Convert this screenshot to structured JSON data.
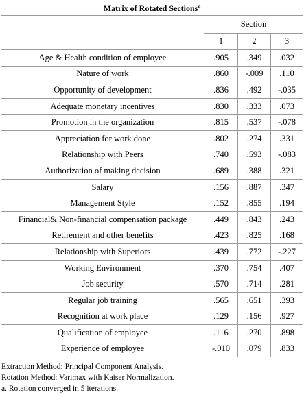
{
  "table": {
    "title": "Matrix of Rotated Sections",
    "title_sup": "a",
    "group_header": "Section",
    "columns": [
      "1",
      "2",
      "3"
    ],
    "rows": [
      {
        "label": "Age & Health condition of employee",
        "values": [
          ".905",
          ".349",
          ".032"
        ]
      },
      {
        "label": "Nature of work",
        "values": [
          ".860",
          "-.009",
          ".110"
        ]
      },
      {
        "label": "Opportunity of development",
        "values": [
          ".836",
          ".492",
          "-.035"
        ]
      },
      {
        "label": "Adequate monetary incentives",
        "values": [
          ".830",
          ".333",
          ".073"
        ]
      },
      {
        "label": "Promotion in the organization",
        "values": [
          ".815",
          ".537",
          "-.078"
        ]
      },
      {
        "label": "Appreciation for work done",
        "values": [
          ".802",
          ".274",
          ".331"
        ]
      },
      {
        "label": "Relationship with Peers",
        "values": [
          ".740",
          ".593",
          "-.083"
        ]
      },
      {
        "label": "Authorization of making decision",
        "values": [
          ".689",
          ".388",
          ".321"
        ]
      },
      {
        "label": "Salary",
        "values": [
          ".156",
          ".887",
          ".347"
        ]
      },
      {
        "label": "Management Style",
        "values": [
          ".152",
          ".855",
          ".194"
        ]
      },
      {
        "label": "Financial& Non-financial compensation package",
        "values": [
          ".449",
          ".843",
          ".243"
        ]
      },
      {
        "label": "Retirement and other benefits",
        "values": [
          ".423",
          ".825",
          ".168"
        ]
      },
      {
        "label": "Relationship with Superiors",
        "values": [
          ".439",
          ".772",
          "-.227"
        ]
      },
      {
        "label": "Working Environment",
        "values": [
          ".370",
          ".754",
          ".407"
        ]
      },
      {
        "label": "Job security",
        "values": [
          ".570",
          ".714",
          ".281"
        ]
      },
      {
        "label": "Regular job training",
        "values": [
          ".565",
          ".651",
          ".393"
        ]
      },
      {
        "label": "Recognition at work place",
        "values": [
          ".129",
          ".156",
          ".927"
        ]
      },
      {
        "label": "Qualification of employee",
        "values": [
          ".116",
          ".270",
          ".898"
        ]
      },
      {
        "label": "Experience of employee",
        "values": [
          "-.010",
          ".079",
          ".833"
        ]
      }
    ]
  },
  "footnotes": [
    "Extraction Method: Principal Component Analysis.",
    "Rotation Method: Varimax with Kaiser Normalization.",
    "a. Rotation converged in 5 iterations."
  ]
}
